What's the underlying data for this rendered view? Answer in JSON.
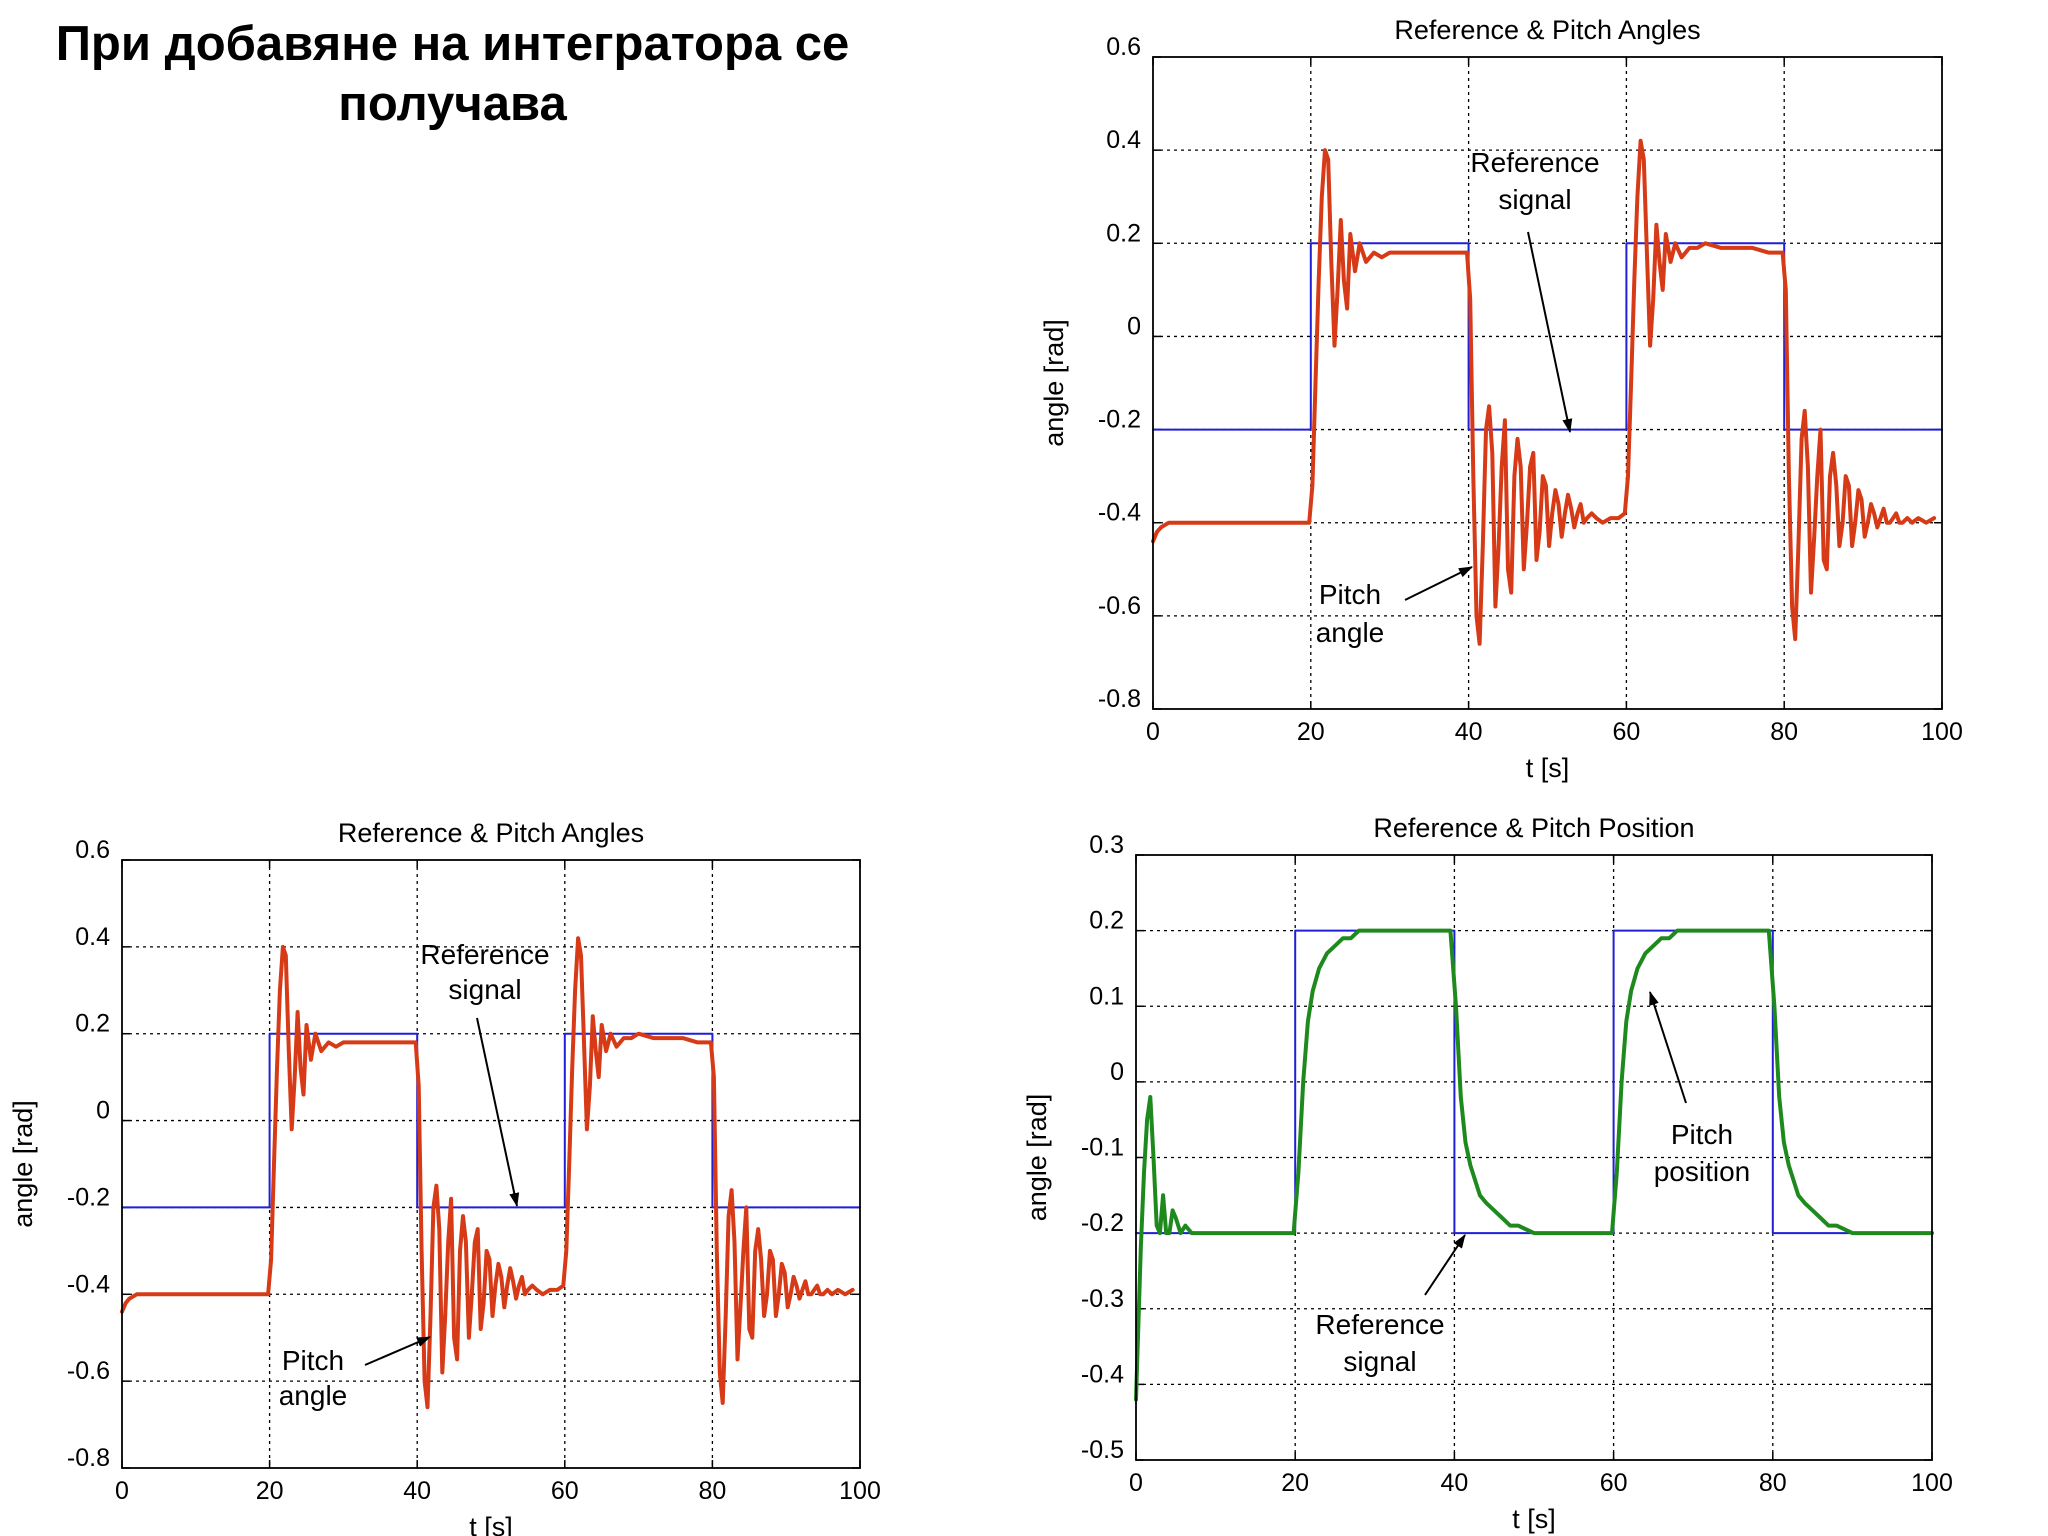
{
  "slide": {
    "title_line1": "При добавяне на интегратора се",
    "title_line2": "получава"
  },
  "colors": {
    "reference": "#1f1fd6",
    "pitch_angle": "#d63a16",
    "pitch_position": "#1e8a1e",
    "grid": "#000000"
  },
  "chart_data": [
    {
      "id": "chart-top-right",
      "type": "line",
      "title": "Reference & Pitch Angles",
      "xlabel": "t [s]",
      "ylabel": "angle [rad]",
      "xlim": [
        0,
        100
      ],
      "ylim": [
        -0.8,
        0.6
      ],
      "xticks": [
        0,
        20,
        40,
        60,
        80,
        100
      ],
      "yticks": [
        -0.8,
        -0.6,
        -0.4,
        -0.2,
        0,
        0.2,
        0.4,
        0.6
      ],
      "xtick_labels": [
        "0",
        "20",
        "40",
        "60",
        "80",
        "100"
      ],
      "ytick_labels": [
        "-0.8",
        "-0.6",
        "-0.4",
        "-0.2",
        "0",
        "0.2",
        "0.4",
        "0.6"
      ],
      "grid": true,
      "series": [
        {
          "key": "reference",
          "color": "#1f1fd6",
          "x": [
            0,
            20,
            20,
            40,
            40,
            60,
            60,
            80,
            80,
            100
          ],
          "y": [
            -0.2,
            -0.2,
            0.2,
            0.2,
            -0.2,
            -0.2,
            0.2,
            0.2,
            -0.2,
            -0.2
          ]
        },
        {
          "key": "pitch",
          "color": "#d63a16",
          "x": [
            0,
            0.5,
            1,
            2,
            4,
            6,
            8,
            10,
            15,
            19.8,
            20.2,
            20.6,
            21,
            21.4,
            21.8,
            22.2,
            22.6,
            23,
            23.4,
            23.8,
            24.2,
            24.6,
            25,
            25.6,
            26.2,
            27,
            28,
            29,
            30,
            32,
            34,
            36,
            38,
            39.8,
            40.2,
            40.6,
            41,
            41.4,
            41.8,
            42.2,
            42.6,
            43,
            43.4,
            43.8,
            44.2,
            44.6,
            45,
            45.4,
            45.8,
            46.2,
            46.6,
            47,
            47.4,
            47.8,
            48.2,
            48.6,
            49,
            49.4,
            49.8,
            50.2,
            50.6,
            51,
            51.4,
            51.8,
            52.2,
            52.6,
            53,
            53.4,
            53.8,
            54.2,
            54.6,
            55,
            55.6,
            56.2,
            57,
            58,
            59,
            59.8,
            60.2,
            60.6,
            61,
            61.4,
            61.8,
            62.2,
            62.6,
            63,
            63.4,
            63.8,
            64.2,
            64.6,
            65,
            65.6,
            66.2,
            67,
            68,
            69,
            70,
            72,
            74,
            76,
            78,
            79.8,
            80.2,
            80.6,
            81,
            81.4,
            81.8,
            82.2,
            82.6,
            83,
            83.4,
            83.8,
            84.2,
            84.6,
            85,
            85.4,
            85.8,
            86.2,
            86.6,
            87,
            87.4,
            87.8,
            88.2,
            88.6,
            89,
            89.4,
            89.8,
            90.2,
            90.6,
            91,
            91.4,
            91.8,
            92.2,
            92.6,
            93,
            93.4,
            93.8,
            94.2,
            94.6,
            95,
            95.6,
            96.2,
            97,
            98,
            99
          ],
          "y": [
            -0.44,
            -0.42,
            -0.41,
            -0.4,
            -0.4,
            -0.4,
            -0.4,
            -0.4,
            -0.4,
            -0.4,
            -0.32,
            -0.1,
            0.12,
            0.3,
            0.4,
            0.38,
            0.16,
            -0.02,
            0.1,
            0.25,
            0.12,
            0.06,
            0.22,
            0.14,
            0.2,
            0.16,
            0.18,
            0.17,
            0.18,
            0.18,
            0.18,
            0.18,
            0.18,
            0.18,
            0.08,
            -0.3,
            -0.6,
            -0.66,
            -0.45,
            -0.2,
            -0.15,
            -0.25,
            -0.58,
            -0.45,
            -0.28,
            -0.18,
            -0.5,
            -0.55,
            -0.3,
            -0.22,
            -0.28,
            -0.5,
            -0.4,
            -0.28,
            -0.25,
            -0.48,
            -0.42,
            -0.3,
            -0.32,
            -0.45,
            -0.38,
            -0.33,
            -0.36,
            -0.43,
            -0.38,
            -0.34,
            -0.37,
            -0.41,
            -0.38,
            -0.36,
            -0.4,
            -0.39,
            -0.38,
            -0.39,
            -0.4,
            -0.39,
            -0.39,
            -0.38,
            -0.3,
            -0.1,
            0.12,
            0.3,
            0.42,
            0.38,
            0.18,
            -0.02,
            0.08,
            0.24,
            0.16,
            0.1,
            0.22,
            0.16,
            0.2,
            0.17,
            0.19,
            0.19,
            0.2,
            0.19,
            0.19,
            0.19,
            0.18,
            0.18,
            0.1,
            -0.3,
            -0.58,
            -0.65,
            -0.45,
            -0.22,
            -0.16,
            -0.28,
            -0.55,
            -0.43,
            -0.3,
            -0.2,
            -0.48,
            -0.5,
            -0.3,
            -0.25,
            -0.32,
            -0.45,
            -0.4,
            -0.3,
            -0.32,
            -0.45,
            -0.4,
            -0.33,
            -0.35,
            -0.43,
            -0.4,
            -0.36,
            -0.38,
            -0.41,
            -0.39,
            -0.37,
            -0.4,
            -0.4,
            -0.39,
            -0.38,
            -0.4,
            -0.4,
            -0.39,
            -0.4,
            -0.39,
            -0.4,
            -0.39
          ]
        }
      ],
      "annotations": [
        {
          "key": "ref",
          "lines": [
            "Reference",
            "signal"
          ]
        },
        {
          "key": "pitch",
          "lines": [
            "Pitch",
            "angle"
          ]
        }
      ]
    },
    {
      "id": "chart-bottom-left",
      "type": "line",
      "title": "Reference & Pitch Angles",
      "xlabel": "t [s]",
      "ylabel": "angle [rad]",
      "xlim": [
        0,
        100
      ],
      "ylim": [
        -0.8,
        0.6
      ],
      "xticks": [
        0,
        20,
        40,
        60,
        80,
        100
      ],
      "yticks": [
        -0.8,
        -0.6,
        -0.4,
        -0.2,
        0,
        0.2,
        0.4,
        0.6
      ],
      "xtick_labels": [
        "0",
        "20",
        "40",
        "60",
        "80",
        "100"
      ],
      "ytick_labels": [
        "-0.8",
        "-0.6",
        "-0.4",
        "-0.2",
        "0",
        "0.2",
        "0.4",
        "0.6"
      ],
      "grid": true,
      "series": [
        {
          "key": "reference",
          "color": "#1f1fd6",
          "x": [
            0,
            20,
            20,
            40,
            40,
            60,
            60,
            80,
            80,
            100
          ],
          "y": [
            -0.2,
            -0.2,
            0.2,
            0.2,
            -0.2,
            -0.2,
            0.2,
            0.2,
            -0.2,
            -0.2
          ]
        },
        {
          "key": "pitch",
          "color": "#d63a16",
          "x": [
            0,
            0.5,
            1,
            2,
            4,
            6,
            8,
            10,
            15,
            19.8,
            20.2,
            20.6,
            21,
            21.4,
            21.8,
            22.2,
            22.6,
            23,
            23.4,
            23.8,
            24.2,
            24.6,
            25,
            25.6,
            26.2,
            27,
            28,
            29,
            30,
            32,
            34,
            36,
            38,
            39.8,
            40.2,
            40.6,
            41,
            41.4,
            41.8,
            42.2,
            42.6,
            43,
            43.4,
            43.8,
            44.2,
            44.6,
            45,
            45.4,
            45.8,
            46.2,
            46.6,
            47,
            47.4,
            47.8,
            48.2,
            48.6,
            49,
            49.4,
            49.8,
            50.2,
            50.6,
            51,
            51.4,
            51.8,
            52.2,
            52.6,
            53,
            53.4,
            53.8,
            54.2,
            54.6,
            55,
            55.6,
            56.2,
            57,
            58,
            59,
            59.8,
            60.2,
            60.6,
            61,
            61.4,
            61.8,
            62.2,
            62.6,
            63,
            63.4,
            63.8,
            64.2,
            64.6,
            65,
            65.6,
            66.2,
            67,
            68,
            69,
            70,
            72,
            74,
            76,
            78,
            79.8,
            80.2,
            80.6,
            81,
            81.4,
            81.8,
            82.2,
            82.6,
            83,
            83.4,
            83.8,
            84.2,
            84.6,
            85,
            85.4,
            85.8,
            86.2,
            86.6,
            87,
            87.4,
            87.8,
            88.2,
            88.6,
            89,
            89.4,
            89.8,
            90.2,
            90.6,
            91,
            91.4,
            91.8,
            92.2,
            92.6,
            93,
            93.4,
            93.8,
            94.2,
            94.6,
            95,
            95.6,
            96.2,
            97,
            98,
            99
          ],
          "y": [
            -0.44,
            -0.42,
            -0.41,
            -0.4,
            -0.4,
            -0.4,
            -0.4,
            -0.4,
            -0.4,
            -0.4,
            -0.32,
            -0.1,
            0.12,
            0.3,
            0.4,
            0.38,
            0.16,
            -0.02,
            0.1,
            0.25,
            0.12,
            0.06,
            0.22,
            0.14,
            0.2,
            0.16,
            0.18,
            0.17,
            0.18,
            0.18,
            0.18,
            0.18,
            0.18,
            0.18,
            0.08,
            -0.3,
            -0.6,
            -0.66,
            -0.45,
            -0.2,
            -0.15,
            -0.25,
            -0.58,
            -0.45,
            -0.28,
            -0.18,
            -0.5,
            -0.55,
            -0.3,
            -0.22,
            -0.28,
            -0.5,
            -0.4,
            -0.28,
            -0.25,
            -0.48,
            -0.42,
            -0.3,
            -0.32,
            -0.45,
            -0.38,
            -0.33,
            -0.36,
            -0.43,
            -0.38,
            -0.34,
            -0.37,
            -0.41,
            -0.38,
            -0.36,
            -0.4,
            -0.39,
            -0.38,
            -0.39,
            -0.4,
            -0.39,
            -0.39,
            -0.38,
            -0.3,
            -0.1,
            0.12,
            0.3,
            0.42,
            0.38,
            0.18,
            -0.02,
            0.08,
            0.24,
            0.16,
            0.1,
            0.22,
            0.16,
            0.2,
            0.17,
            0.19,
            0.19,
            0.2,
            0.19,
            0.19,
            0.19,
            0.18,
            0.18,
            0.1,
            -0.3,
            -0.58,
            -0.65,
            -0.45,
            -0.22,
            -0.16,
            -0.28,
            -0.55,
            -0.43,
            -0.3,
            -0.2,
            -0.48,
            -0.5,
            -0.3,
            -0.25,
            -0.32,
            -0.45,
            -0.4,
            -0.3,
            -0.32,
            -0.45,
            -0.4,
            -0.33,
            -0.35,
            -0.43,
            -0.4,
            -0.36,
            -0.38,
            -0.41,
            -0.39,
            -0.37,
            -0.4,
            -0.4,
            -0.39,
            -0.38,
            -0.4,
            -0.4,
            -0.39,
            -0.4,
            -0.39,
            -0.4,
            -0.39
          ]
        }
      ],
      "annotations": [
        {
          "key": "ref",
          "lines": [
            "Reference",
            "signal"
          ]
        },
        {
          "key": "pitch",
          "lines": [
            "Pitch",
            "angle"
          ]
        }
      ]
    },
    {
      "id": "chart-bottom-right",
      "type": "line",
      "title": "Reference & Pitch Position",
      "xlabel": "t [s]",
      "ylabel": "angle [rad]",
      "xlim": [
        0,
        100
      ],
      "ylim": [
        -0.5,
        0.3
      ],
      "xticks": [
        0,
        20,
        40,
        60,
        80,
        100
      ],
      "yticks": [
        -0.5,
        -0.4,
        -0.3,
        -0.2,
        -0.1,
        0,
        0.1,
        0.2,
        0.3
      ],
      "xtick_labels": [
        "0",
        "20",
        "40",
        "60",
        "80",
        "100"
      ],
      "ytick_labels": [
        "-0.5",
        "-0.4",
        "-0.3",
        "-0.2",
        "-0.1",
        "0",
        "0.1",
        "0.2",
        "0.3"
      ],
      "grid": true,
      "series": [
        {
          "key": "reference",
          "color": "#1f1fd6",
          "x": [
            0,
            20,
            20,
            40,
            40,
            60,
            60,
            80,
            80,
            100
          ],
          "y": [
            -0.2,
            -0.2,
            0.2,
            0.2,
            -0.2,
            -0.2,
            0.2,
            0.2,
            -0.2,
            -0.2
          ]
        },
        {
          "key": "pitch",
          "color": "#1e8a1e",
          "x": [
            0,
            0.3,
            0.6,
            1,
            1.4,
            1.8,
            2.2,
            2.6,
            3,
            3.4,
            3.8,
            4.2,
            4.6,
            5,
            5.6,
            6.2,
            7,
            8,
            10,
            12,
            14,
            16,
            18,
            19.8,
            20.4,
            21,
            21.6,
            22.2,
            23,
            24,
            25,
            26,
            27,
            28,
            29,
            30,
            32,
            34,
            36,
            38,
            39.5,
            40.2,
            40.8,
            41.4,
            42,
            42.6,
            43.2,
            44,
            45,
            46,
            47,
            48,
            50,
            52,
            54,
            56,
            58,
            59.8,
            60.4,
            61,
            61.6,
            62.2,
            63,
            64,
            65,
            66,
            67,
            68,
            69,
            70,
            72,
            74,
            76,
            78,
            79.5,
            80.2,
            80.8,
            81.4,
            82,
            82.6,
            83.2,
            84,
            85,
            86,
            87,
            88,
            90,
            92,
            94,
            96,
            98,
            100
          ],
          "y": [
            -0.42,
            -0.32,
            -0.22,
            -0.12,
            -0.05,
            -0.02,
            -0.1,
            -0.19,
            -0.2,
            -0.15,
            -0.2,
            -0.2,
            -0.17,
            -0.18,
            -0.2,
            -0.19,
            -0.2,
            -0.2,
            -0.2,
            -0.2,
            -0.2,
            -0.2,
            -0.2,
            -0.2,
            -0.12,
            0.0,
            0.08,
            0.12,
            0.15,
            0.17,
            0.18,
            0.19,
            0.19,
            0.2,
            0.2,
            0.2,
            0.2,
            0.2,
            0.2,
            0.2,
            0.2,
            0.1,
            -0.02,
            -0.08,
            -0.11,
            -0.13,
            -0.15,
            -0.16,
            -0.17,
            -0.18,
            -0.19,
            -0.19,
            -0.2,
            -0.2,
            -0.2,
            -0.2,
            -0.2,
            -0.2,
            -0.12,
            0.0,
            0.08,
            0.12,
            0.15,
            0.17,
            0.18,
            0.19,
            0.19,
            0.2,
            0.2,
            0.2,
            0.2,
            0.2,
            0.2,
            0.2,
            0.2,
            0.1,
            -0.02,
            -0.08,
            -0.11,
            -0.13,
            -0.15,
            -0.16,
            -0.17,
            -0.18,
            -0.19,
            -0.19,
            -0.2,
            -0.2,
            -0.2,
            -0.2,
            -0.2,
            -0.2
          ]
        }
      ],
      "annotations": [
        {
          "key": "pitch",
          "lines": [
            "Pitch",
            "position"
          ]
        },
        {
          "key": "ref",
          "lines": [
            "Reference",
            "signal"
          ]
        }
      ]
    }
  ]
}
